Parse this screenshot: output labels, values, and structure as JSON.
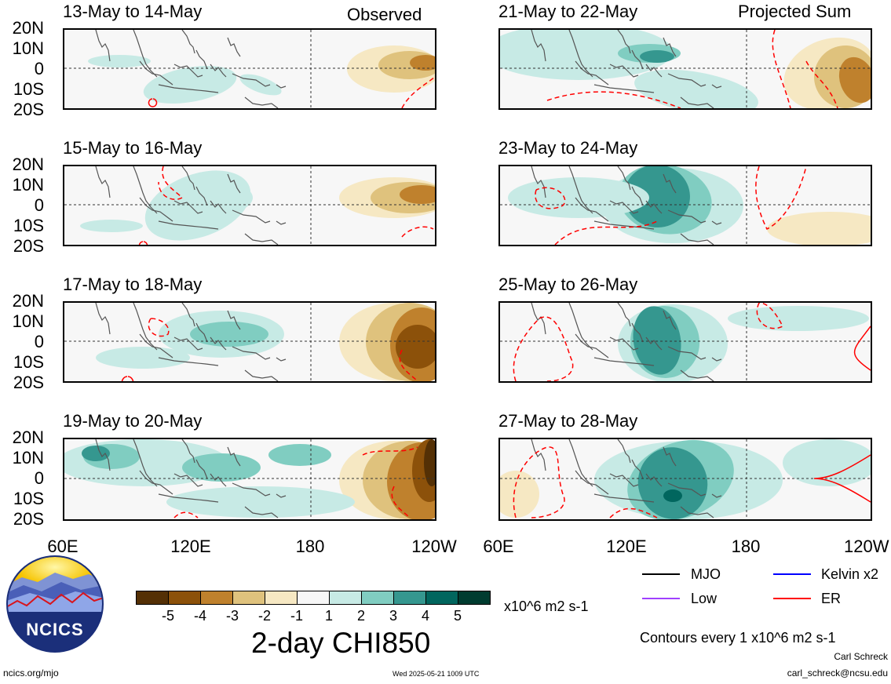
{
  "header": {
    "left_label": "Observed",
    "right_label": "Projected Sum"
  },
  "panels": [
    {
      "title": "13-May to 14-May"
    },
    {
      "title": "21-May to 22-May"
    },
    {
      "title": "15-May to 16-May"
    },
    {
      "title": "23-May to 24-May"
    },
    {
      "title": "17-May to 18-May"
    },
    {
      "title": "25-May to 26-May"
    },
    {
      "title": "19-May to 20-May"
    },
    {
      "title": "27-May to 28-May"
    }
  ],
  "lat_labels": [
    "20N",
    "10N",
    "0",
    "10S",
    "20S"
  ],
  "lon_labels": [
    "60E",
    "120E",
    "180",
    "120W"
  ],
  "colorbar": {
    "ticks": [
      "-5",
      "-4",
      "-3",
      "-2",
      "-1",
      "1",
      "2",
      "3",
      "4",
      "5"
    ],
    "colors": [
      "#543005",
      "#8c510a",
      "#bf812d",
      "#dfc27d",
      "#f6e8c3",
      "#f7f7f7",
      "#c7eae5",
      "#80cdc1",
      "#35978f",
      "#01665e",
      "#003c30"
    ],
    "units": "x10^6 m2 s-1"
  },
  "product_title": "2-day CHI850",
  "logo_text": "NCICS",
  "legend": {
    "items": [
      {
        "label": "MJO",
        "color": "#000000"
      },
      {
        "label": "Kelvin x2",
        "color": "#0000ff"
      },
      {
        "label": "Low",
        "color": "#a040ff"
      },
      {
        "label": "ER",
        "color": "#ff0000"
      }
    ],
    "contour_note": "Contours every 1 x10^6 m2 s-1"
  },
  "footer": {
    "site": "ncics.org/mjo",
    "timestamp": "Wed 2025-05-21 1009 UTC",
    "author": "Carl Schreck",
    "email": "carl_schreck@ncsu.edu"
  }
}
